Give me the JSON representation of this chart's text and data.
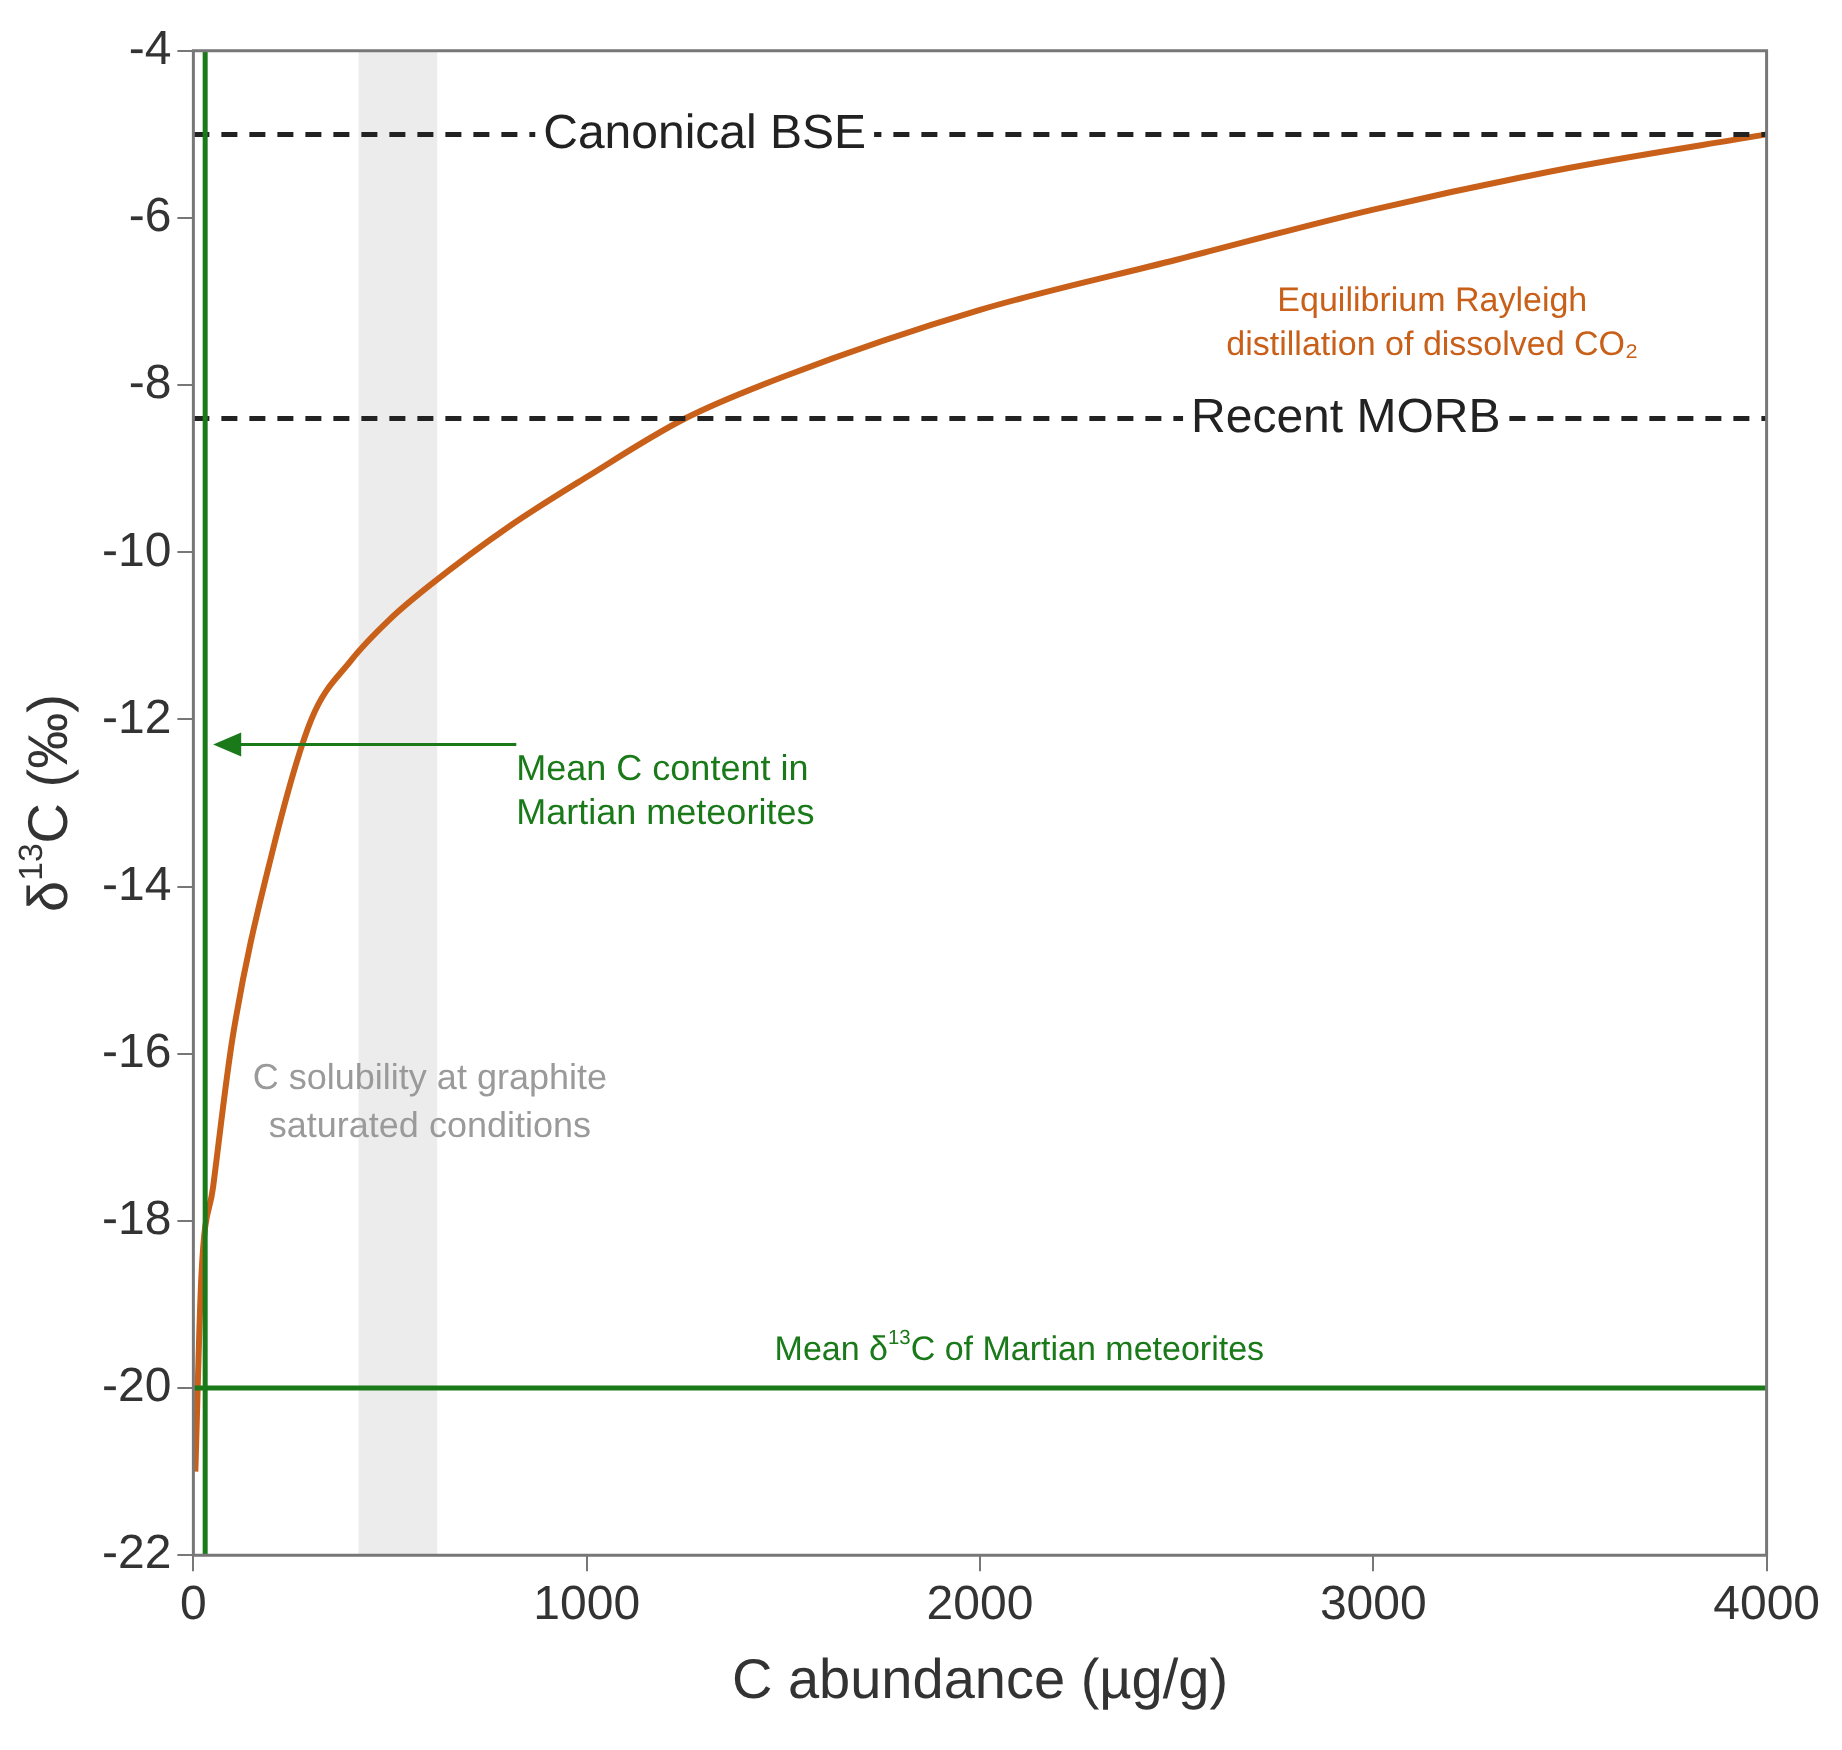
{
  "chart_data": {
    "type": "line",
    "xlabel": "C abundance (µg/g)",
    "ylabel": "δ$^{13}$C (‰)",
    "x": [
      5,
      20,
      50,
      100,
      200,
      300,
      400,
      500,
      600,
      800,
      1000,
      1250,
      1500,
      2000,
      2500,
      3000,
      3500,
      4000
    ],
    "series": [
      {
        "name": "Equilibrium Rayleigh distillation of dissolved CO₂",
        "color": "#c8601a",
        "values": [
          -21,
          -18.7,
          -17.6,
          -15.8,
          -13.6,
          -12,
          -11.3,
          -10.8,
          -10.4,
          -9.7,
          -9.1,
          -8.4,
          -7.9,
          -7.1,
          -6.5,
          -5.9,
          -5.4,
          -5
        ]
      }
    ],
    "xlim": [
      0,
      4000
    ],
    "xticks": [
      0,
      1000,
      2000,
      3000,
      4000
    ],
    "ylim": [
      -22,
      -4
    ],
    "yticks": [
      -22,
      -20,
      -18,
      -16,
      -14,
      -12,
      -10,
      -8,
      -6,
      -4
    ],
    "ref_lines": [
      {
        "axis": "y",
        "value": -5,
        "label": "Canonical BSE",
        "color": "#222222",
        "line_style": "dashed"
      },
      {
        "axis": "y",
        "value": -8.4,
        "label": "Recent MORB",
        "color": "#222222",
        "line_style": "dashed"
      },
      {
        "axis": "y",
        "value": -20,
        "label": "Mean δ$^{13}$C of Martian meteorites",
        "color": "#1a7a1a",
        "line_style": "solid"
      },
      {
        "axis": "x",
        "value": 30,
        "label": "Mean C content in Martian meteorites",
        "color": "#1a7a1a",
        "line_style": "solid"
      }
    ],
    "bands": [
      {
        "axis": "x",
        "from": 420,
        "to": 620,
        "label": "C solubility at graphite saturated conditions",
        "color": "#ececec"
      }
    ],
    "grid": false,
    "legend": false,
    "marker": "none",
    "line_style": "solid"
  }
}
